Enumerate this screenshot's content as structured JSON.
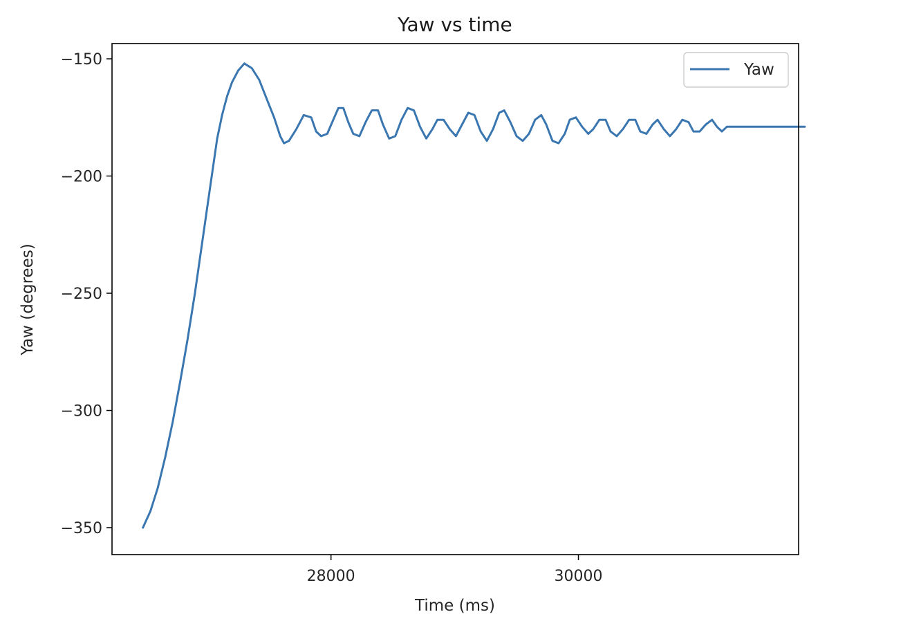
{
  "chart_data": {
    "type": "line",
    "title": "Yaw vs time",
    "xlabel": "Time (ms)",
    "ylabel": "Yaw (degrees)",
    "xlim": [
      26230,
      31780
    ],
    "ylim": [
      -361.5,
      -143.5
    ],
    "xticks": [
      28000,
      30000
    ],
    "xtick_labels": [
      "28000",
      "30000"
    ],
    "yticks": [
      -150,
      -200,
      -250,
      -300,
      -350
    ],
    "ytick_labels": [
      "−150",
      "−200",
      "−250",
      "−300",
      "−350"
    ],
    "grid": false,
    "legend": {
      "position": "top-right",
      "entries": [
        "Yaw"
      ]
    },
    "series": [
      {
        "name": "Yaw",
        "color": "#3a76b0",
        "points": [
          [
            26480,
            -350
          ],
          [
            26540,
            -343
          ],
          [
            26600,
            -333
          ],
          [
            26660,
            -320
          ],
          [
            26720,
            -305
          ],
          [
            26780,
            -288
          ],
          [
            26840,
            -270
          ],
          [
            26900,
            -250
          ],
          [
            26960,
            -228
          ],
          [
            27020,
            -206
          ],
          [
            27080,
            -184
          ],
          [
            27120,
            -174
          ],
          [
            27160,
            -166
          ],
          [
            27200,
            -160
          ],
          [
            27250,
            -155
          ],
          [
            27300,
            -152
          ],
          [
            27360,
            -154
          ],
          [
            27420,
            -159
          ],
          [
            27480,
            -167
          ],
          [
            27540,
            -175
          ],
          [
            27590,
            -183
          ],
          [
            27620,
            -186
          ],
          [
            27660,
            -185
          ],
          [
            27720,
            -180
          ],
          [
            27780,
            -174
          ],
          [
            27840,
            -175
          ],
          [
            27880,
            -181
          ],
          [
            27920,
            -183
          ],
          [
            27970,
            -182
          ],
          [
            28010,
            -177
          ],
          [
            28060,
            -171
          ],
          [
            28100,
            -171
          ],
          [
            28140,
            -177
          ],
          [
            28180,
            -182
          ],
          [
            28230,
            -183
          ],
          [
            28280,
            -177
          ],
          [
            28330,
            -172
          ],
          [
            28380,
            -172
          ],
          [
            28420,
            -178
          ],
          [
            28470,
            -184
          ],
          [
            28520,
            -183
          ],
          [
            28570,
            -176
          ],
          [
            28620,
            -171
          ],
          [
            28670,
            -172
          ],
          [
            28720,
            -179
          ],
          [
            28770,
            -184
          ],
          [
            28820,
            -180
          ],
          [
            28860,
            -176
          ],
          [
            28910,
            -176
          ],
          [
            28960,
            -180
          ],
          [
            29010,
            -183
          ],
          [
            29060,
            -178
          ],
          [
            29110,
            -173
          ],
          [
            29160,
            -174
          ],
          [
            29210,
            -181
          ],
          [
            29260,
            -185
          ],
          [
            29310,
            -180
          ],
          [
            29360,
            -173
          ],
          [
            29400,
            -172
          ],
          [
            29450,
            -177
          ],
          [
            29500,
            -183
          ],
          [
            29550,
            -185
          ],
          [
            29600,
            -182
          ],
          [
            29650,
            -176
          ],
          [
            29700,
            -174
          ],
          [
            29740,
            -178
          ],
          [
            29790,
            -185
          ],
          [
            29840,
            -186
          ],
          [
            29890,
            -182
          ],
          [
            29930,
            -176
          ],
          [
            29980,
            -175
          ],
          [
            30030,
            -179
          ],
          [
            30080,
            -182
          ],
          [
            30120,
            -180
          ],
          [
            30170,
            -176
          ],
          [
            30220,
            -176
          ],
          [
            30260,
            -181
          ],
          [
            30310,
            -183
          ],
          [
            30360,
            -180
          ],
          [
            30410,
            -176
          ],
          [
            30460,
            -176
          ],
          [
            30500,
            -181
          ],
          [
            30550,
            -182
          ],
          [
            30600,
            -178
          ],
          [
            30640,
            -176
          ],
          [
            30690,
            -180
          ],
          [
            30740,
            -183
          ],
          [
            30790,
            -180
          ],
          [
            30840,
            -176
          ],
          [
            30890,
            -177
          ],
          [
            30930,
            -181
          ],
          [
            30980,
            -181
          ],
          [
            31030,
            -178
          ],
          [
            31080,
            -176
          ],
          [
            31120,
            -179
          ],
          [
            31160,
            -181
          ],
          [
            31200,
            -179
          ],
          [
            31260,
            -179
          ],
          [
            31500,
            -179
          ],
          [
            31830,
            -179
          ]
        ]
      }
    ]
  }
}
